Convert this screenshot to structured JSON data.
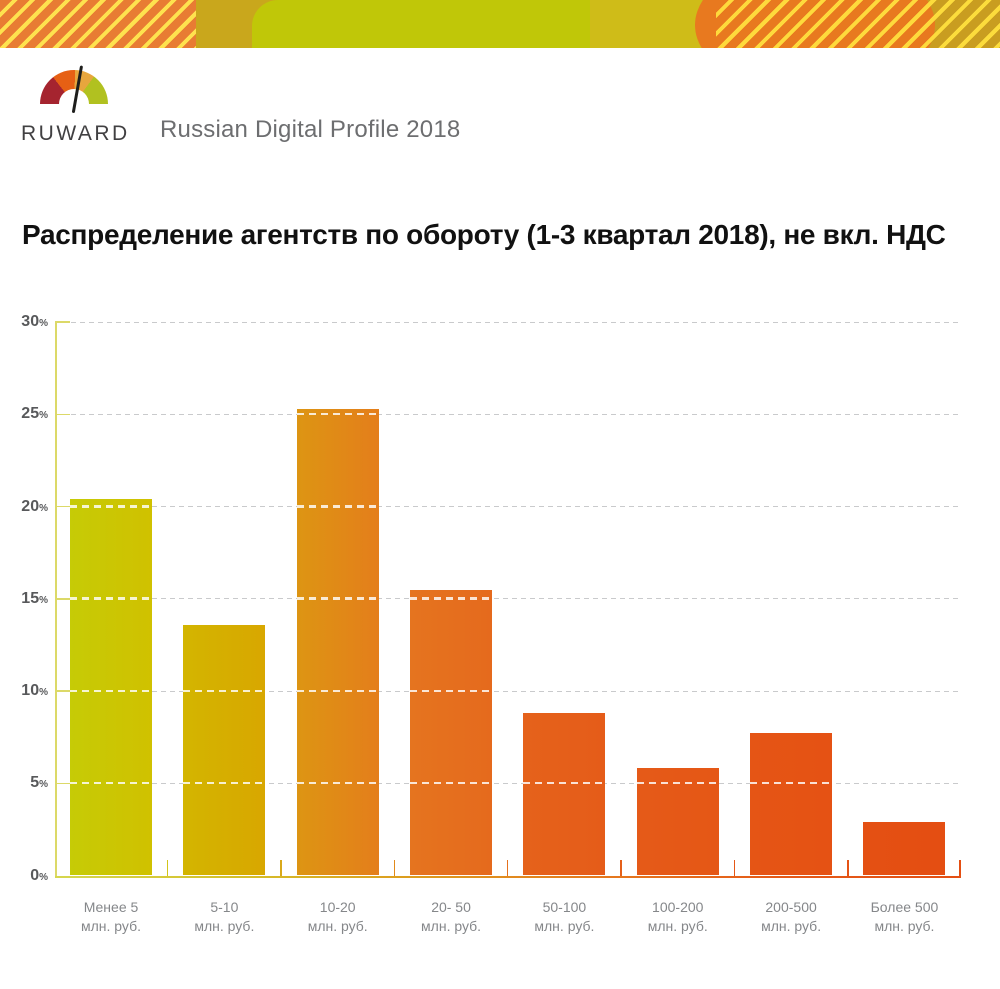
{
  "brand": {
    "logo_text": "RUWARD",
    "product_title": "Russian Digital Profile 2018"
  },
  "page_title": "Распределение агентств по обороту (1-3 квартал 2018), не вкл. НДС",
  "banner_colors": {
    "orange": "#e87c33",
    "yellow_green": "#c0c708",
    "olive": "#cfbc18",
    "gold": "#c99d20",
    "stripe_yellow": "#ffe350",
    "ellipse_orange": "#e8791f"
  },
  "chart_data": {
    "type": "bar",
    "title": "Распределение агентств по обороту (1-3 квартал 2018), не вкл. НДС",
    "categories": [
      "Менее 5",
      "5-10",
      "10-20",
      "20- 50",
      "50-100",
      "100-200",
      "200-500",
      "Более 500"
    ],
    "category_unit": "млн. руб.",
    "values": [
      20.4,
      13.6,
      25.3,
      15.5,
      8.8,
      5.8,
      7.7,
      2.9
    ],
    "ylim": [
      0,
      30
    ],
    "yticks": [
      0,
      5,
      10,
      15,
      20,
      25,
      30
    ],
    "ytick_suffix": "%",
    "xlabel": "",
    "ylabel": "",
    "grid": "horizontal dashed lines every 5%, gray outside bars, white over bars",
    "legend": "none",
    "bar_gradients": [
      [
        "#c6cb06",
        "#d0c100"
      ],
      [
        "#d3b500",
        "#d8a700"
      ],
      [
        "#dd9513",
        "#e47e1b"
      ],
      [
        "#e5741f",
        "#e56a1d"
      ],
      [
        "#e5621b",
        "#e55c19"
      ],
      [
        "#e55a18",
        "#e55716"
      ],
      [
        "#e55515",
        "#e55214"
      ],
      [
        "#e45013",
        "#e44e12"
      ]
    ],
    "xtick_colors": [
      "#d2c51a",
      "#d9a91b",
      "#e18a1b",
      "#e5711e",
      "#e5601a",
      "#e55817",
      "#e55315",
      "#e44e12"
    ],
    "axis_gradient": [
      "#d6d74e",
      "#d5c02a",
      "#dd9b1d",
      "#e57a1e",
      "#e55a18",
      "#e45014"
    ],
    "yaxis_color": "#dcd968",
    "gridline_color": "#c9cacc",
    "ylabel_color": "#58595b",
    "xlabel_color": "#85878a"
  }
}
